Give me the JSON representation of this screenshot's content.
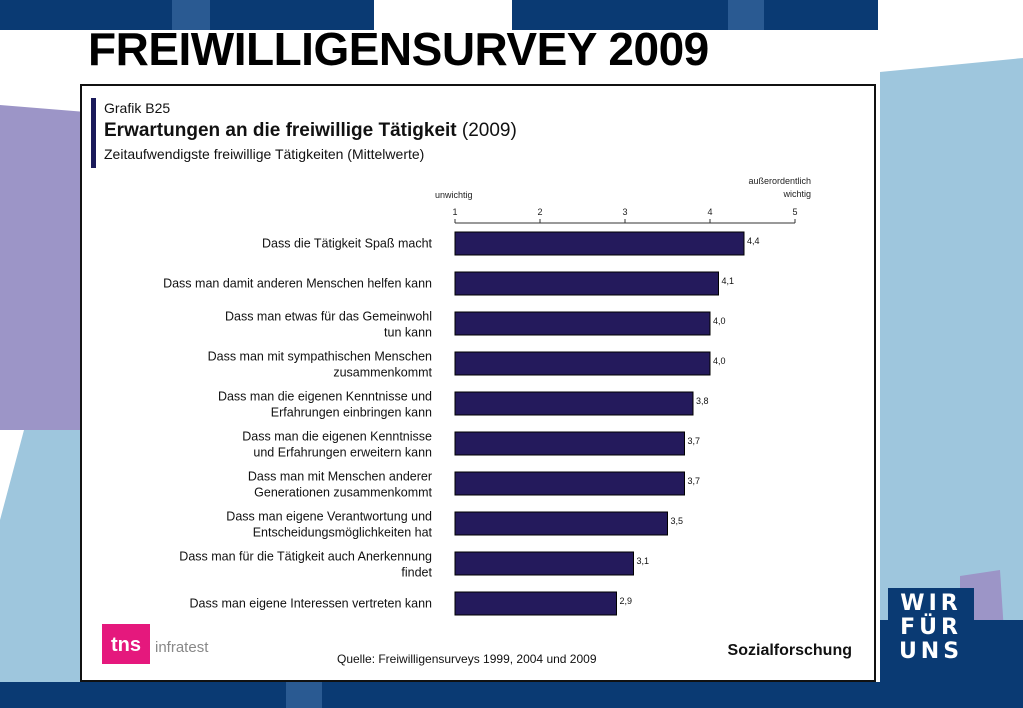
{
  "slide": {
    "title": "FREIWILLIGENSURVEY 2009",
    "colors": {
      "navy": "#0a3a73",
      "light_blue": "#9ec6dd",
      "purple": "#9c95c7"
    }
  },
  "chart_data": {
    "type": "bar",
    "orientation": "horizontal",
    "label": "Grafik B25",
    "title_bold": "Erwartungen an die freiwillige Tätigkeit",
    "title_rest": "(2009)",
    "subtitle": "Zeitaufwendigste freiwillige Tätigkeiten (Mittelwerte)",
    "axis_left_label": "unwichtig",
    "axis_right_label": [
      "außerordentlich",
      "wichtig"
    ],
    "xlim": [
      1,
      5
    ],
    "ticks": [
      "1",
      "2",
      "3",
      "4",
      "5"
    ],
    "bar_color": "#241a5c",
    "categories": [
      [
        "Dass die Tätigkeit Spaß macht"
      ],
      [
        "Dass man damit anderen Menschen helfen kann"
      ],
      [
        "Dass man etwas für das Gemeinwohl",
        "tun kann"
      ],
      [
        "Dass man mit sympathischen Menschen",
        "zusammenkommt"
      ],
      [
        "Dass man die eigenen Kenntnisse und",
        "Erfahrungen einbringen kann"
      ],
      [
        "Dass man die eigenen Kenntnisse",
        "und Erfahrungen erweitern kann"
      ],
      [
        "Dass man mit Menschen anderer",
        "Generationen zusammenkommt"
      ],
      [
        "Dass man eigene Verantwortung und",
        "Entscheidungsmöglichkeiten hat"
      ],
      [
        "Dass man für die Tätigkeit auch Anerkennung",
        "findet"
      ],
      [
        "Dass man eigene Interessen vertreten kann"
      ]
    ],
    "values": [
      4.4,
      4.1,
      4.0,
      4.0,
      3.8,
      3.7,
      3.7,
      3.5,
      3.1,
      2.9
    ],
    "value_labels": [
      "4,4",
      "4,1",
      "4,0",
      "4,0",
      "3,8",
      "3,7",
      "3,7",
      "3,5",
      "3,1",
      "2,9"
    ],
    "grid": false,
    "legend": "none"
  },
  "footer": {
    "tns": "tns",
    "infratest": "infratest",
    "source": "Quelle: Freiwilligensurveys 1999, 2004 und 2009",
    "brand": "Sozialforschung"
  },
  "wir_fuer_uns": {
    "line1": "WIR",
    "line2": "FÜR",
    "line3": "UNS"
  }
}
